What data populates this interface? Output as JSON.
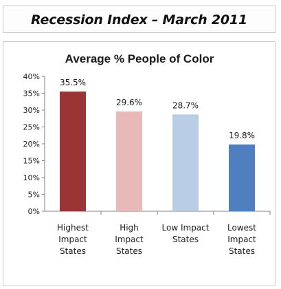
{
  "header": {
    "title": "Recession Index – March 2011"
  },
  "chart_data": {
    "type": "bar",
    "title": "Average % People of Color",
    "xlabel": "",
    "ylabel": "",
    "categories": [
      "Highest Impact States",
      "High Impact States",
      "Low Impact States",
      "Lowest Impact States"
    ],
    "category_lines": [
      [
        "Highest",
        "Impact",
        "States"
      ],
      [
        "High",
        "Impact",
        "States"
      ],
      [
        "Low Impact",
        "States"
      ],
      [
        "Lowest",
        "Impact",
        "States"
      ]
    ],
    "values": [
      35.5,
      29.6,
      28.7,
      19.8
    ],
    "data_labels": [
      "35.5%",
      "29.6%",
      "28.7%",
      "19.8%"
    ],
    "colors": [
      "#9b3434",
      "#e8b9b9",
      "#b9cde6",
      "#4f7fbf"
    ],
    "ylim": [
      0,
      40
    ],
    "yticks": [
      0,
      5,
      10,
      15,
      20,
      25,
      30,
      35,
      40
    ],
    "ytick_labels": [
      "0%",
      "5%",
      "10%",
      "15%",
      "20%",
      "25%",
      "30%",
      "35%",
      "40%"
    ],
    "grid": false,
    "legend": "none"
  }
}
